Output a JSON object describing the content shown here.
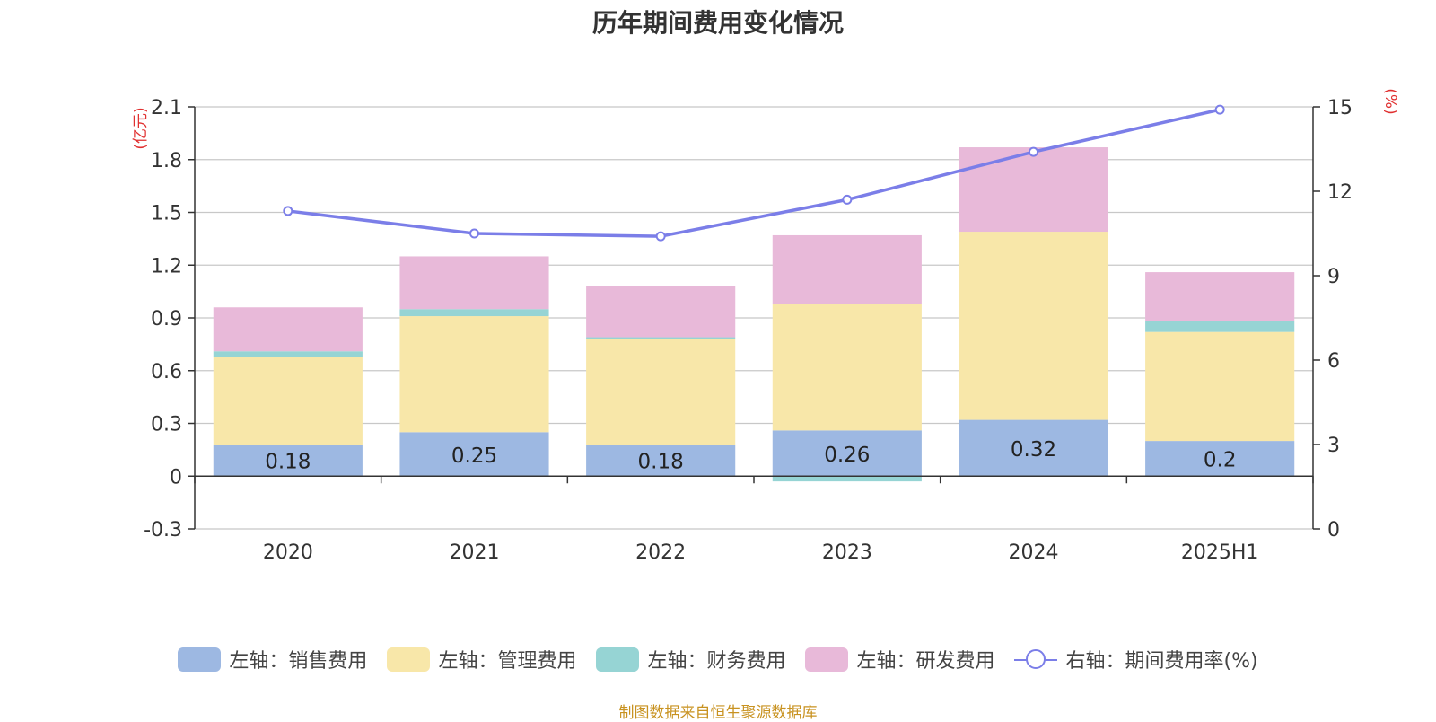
{
  "chart_data": {
    "type": "bar",
    "title": "历年期间费用变化情况",
    "categories": [
      "2020",
      "2021",
      "2022",
      "2023",
      "2024",
      "2025H1"
    ],
    "stacked": true,
    "left_axis": {
      "unit_label": "(亿元)",
      "ylim": [
        -0.3,
        2.1
      ],
      "ticks": [
        "-0.3",
        "0",
        "0.3",
        "0.6",
        "0.9",
        "1.2",
        "1.5",
        "1.8",
        "2.1"
      ]
    },
    "right_axis": {
      "unit_label": "(%)",
      "ylim": [
        0,
        15
      ],
      "ticks": [
        "0",
        "3",
        "6",
        "9",
        "12",
        "15"
      ]
    },
    "grid": true,
    "legend_position": "bottom",
    "series": [
      {
        "name": "左轴：销售费用",
        "axis": "left",
        "type": "bar",
        "color": "#9db8e2",
        "values": [
          0.18,
          0.25,
          0.18,
          0.26,
          0.32,
          0.2
        ],
        "data_labels": [
          "0.18",
          "0.25",
          "0.18",
          "0.26",
          "0.32",
          "0.2"
        ]
      },
      {
        "name": "左轴：管理费用",
        "axis": "left",
        "type": "bar",
        "color": "#f8e7a9",
        "values": [
          0.5,
          0.66,
          0.6,
          0.72,
          1.07,
          0.62
        ]
      },
      {
        "name": "左轴：财务费用",
        "axis": "left",
        "type": "bar",
        "color": "#96d4d4",
        "values": [
          0.03,
          0.04,
          0.01,
          -0.03,
          0.0,
          0.06
        ]
      },
      {
        "name": "左轴：研发费用",
        "axis": "left",
        "type": "bar",
        "color": "#e8b9d9",
        "values": [
          0.25,
          0.3,
          0.29,
          0.39,
          0.48,
          0.28
        ]
      },
      {
        "name": "右轴：期间费用率(%)",
        "axis": "right",
        "type": "line",
        "color": "#7b7ee8",
        "values": [
          11.3,
          10.5,
          10.4,
          11.7,
          13.4,
          14.9
        ]
      }
    ]
  },
  "footer": {
    "source_text": "制图数据来自恒生聚源数据库"
  }
}
